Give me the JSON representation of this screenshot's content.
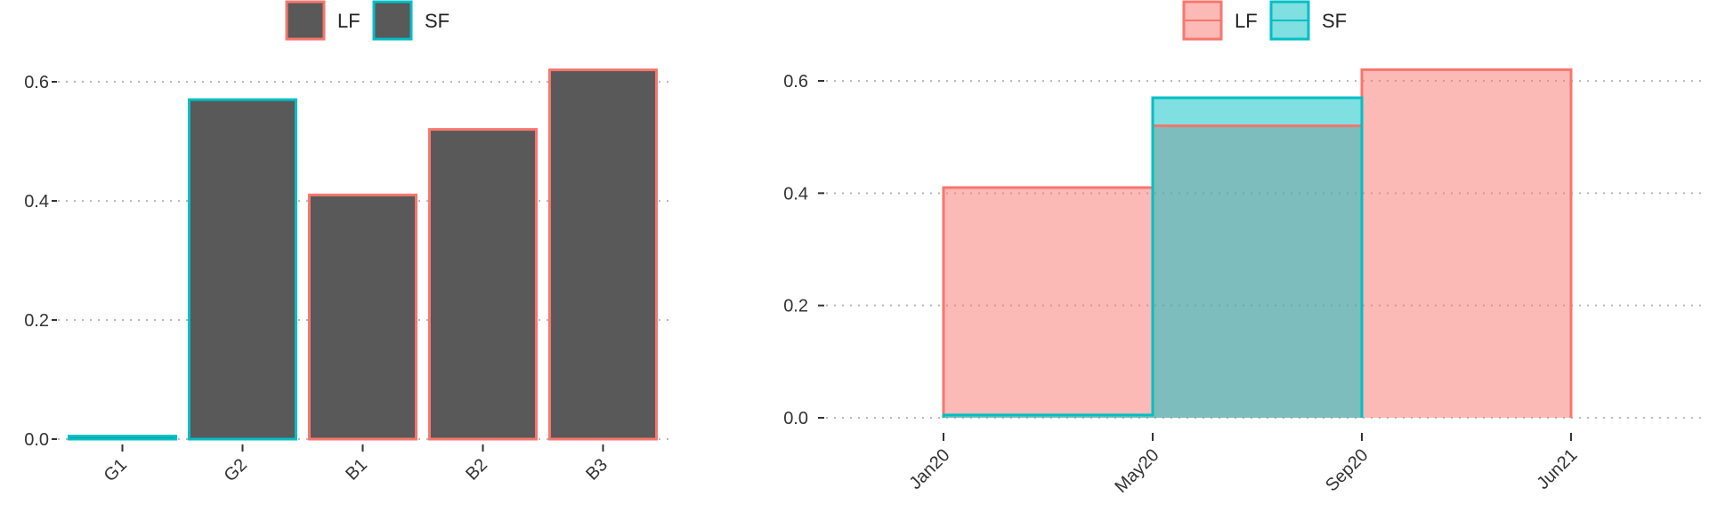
{
  "colors": {
    "lf": "#F8766D",
    "sf": "#00BFC4",
    "bar_fill": "#595959",
    "lf_fill": "#F8766D",
    "sf_fill": "#00BFC4",
    "overlap_fill": "#7EBDBB"
  },
  "chart_data": [
    {
      "type": "bar",
      "categories": [
        "G1",
        "G2",
        "B1",
        "B2",
        "B3"
      ],
      "values": [
        0.005,
        0.57,
        0.41,
        0.52,
        0.62
      ],
      "outline_series": [
        "SF",
        "SF",
        "LF",
        "LF",
        "LF"
      ],
      "legend": [
        "LF",
        "SF"
      ],
      "legend_position": "top",
      "ylim": [
        0,
        0.65
      ],
      "yticks": [
        0.0,
        0.2,
        0.4,
        0.6
      ],
      "ytick_labels": [
        "0.0",
        "0.2",
        "0.4",
        "0.6"
      ],
      "grid": "horizontal dotted"
    },
    {
      "type": "area",
      "step": true,
      "x_ticks": [
        "Jan20",
        "May20",
        "Sep20",
        "Jun21"
      ],
      "series": [
        {
          "name": "LF",
          "steps": [
            {
              "from": "Jan20",
              "to": "May20",
              "value": 0.41
            },
            {
              "from": "May20",
              "to": "Sep20",
              "value": 0.52
            },
            {
              "from": "Sep20",
              "to": "Jun21",
              "value": 0.62
            }
          ]
        },
        {
          "name": "SF",
          "steps": [
            {
              "from": "Jan20",
              "to": "May20",
              "value": 0.005
            },
            {
              "from": "May20",
              "to": "Sep20",
              "value": 0.57
            }
          ]
        }
      ],
      "legend": [
        "LF",
        "SF"
      ],
      "legend_position": "top",
      "ylim": [
        0,
        0.65
      ],
      "yticks": [
        0.0,
        0.2,
        0.4,
        0.6
      ],
      "ytick_labels": [
        "0.0",
        "0.2",
        "0.4",
        "0.6"
      ],
      "grid": "horizontal dotted"
    }
  ]
}
